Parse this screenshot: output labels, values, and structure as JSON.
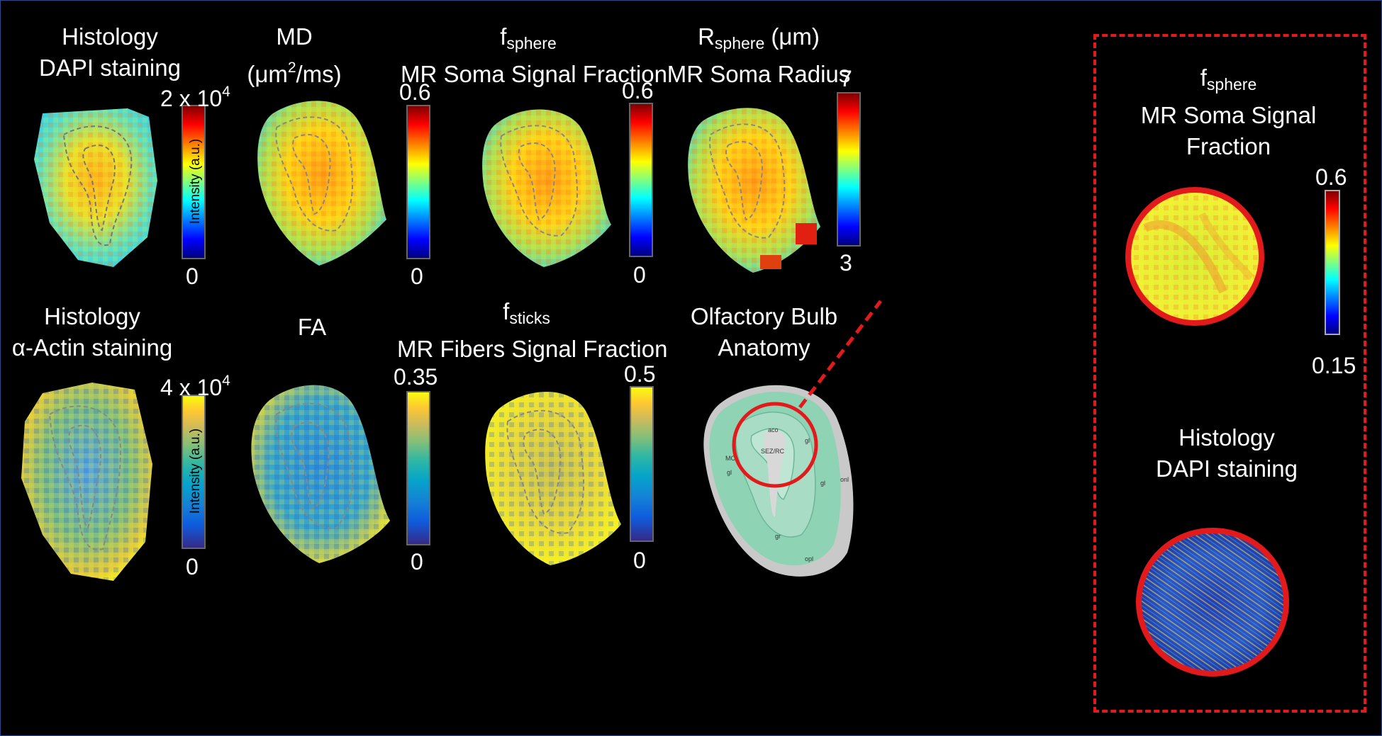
{
  "row1": {
    "p1": {
      "title1": "Histology",
      "title2": "DAPI staining",
      "max": "2 x 10",
      "max_exp": "4",
      "min": "0",
      "cbar_title": "Intensity (a.u.)"
    },
    "p2": {
      "title1": "MD",
      "title2_a": "(μm",
      "title2_sup": "2",
      "title2_b": "/ms)",
      "max": "0.6",
      "min": "0"
    },
    "p3": {
      "title1_a": "f",
      "title1_sub": "sphere",
      "title2": "MR Soma Signal Fraction",
      "max": "0.6",
      "min": "0"
    },
    "p4": {
      "title1_a": "R",
      "title1_sub": "sphere",
      "title1_b": " (μm)",
      "title2": "MR Soma Radius",
      "max": "7",
      "min": "3"
    }
  },
  "row2": {
    "p1": {
      "title1": "Histology",
      "title2": "α-Actin staining",
      "max": "4 x 10",
      "max_exp": "4",
      "min": "0",
      "cbar_title": "Intensity (a.u.)"
    },
    "p2": {
      "title1": "FA",
      "max": "0.35",
      "min": "0"
    },
    "p3": {
      "title1_a": "f",
      "title1_sub": "sticks",
      "title2": "MR Fibers Signal Fraction",
      "max": "0.5",
      "min": "0"
    },
    "p4": {
      "title1": "Olfactory Bulb",
      "title2": "Anatomy",
      "labels": [
        "aco",
        "SEZ/RC",
        "MCL",
        "gl",
        "gl",
        "gl",
        "gr",
        "onl",
        "opl"
      ]
    }
  },
  "inset": {
    "top": {
      "title1_a": "f",
      "title1_sub": "sphere",
      "title2": "MR Soma Signal",
      "title3": "Fraction",
      "max": "0.6",
      "min": "0.15"
    },
    "bottom": {
      "title1": "Histology",
      "title2": "DAPI staining"
    }
  },
  "colors": {
    "accent_red": "#e31a1c",
    "anatomy_green": "#8fd3b5",
    "anatomy_gray": "#c9c9c9"
  }
}
